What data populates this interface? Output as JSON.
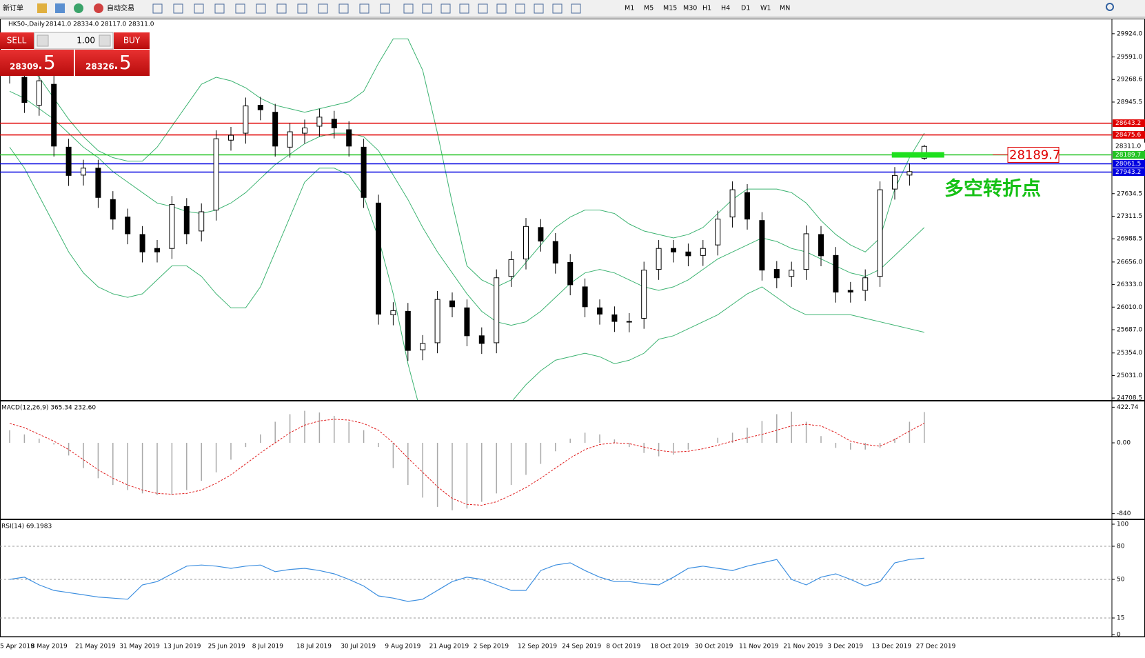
{
  "toolbar": {
    "new_order": "新订单",
    "auto_trading": "自动交易",
    "timeframes": [
      "M1",
      "M5",
      "M15",
      "M30",
      "H1",
      "H4",
      "D1",
      "W1",
      "MN"
    ]
  },
  "trade_panel": {
    "sell": "SELL",
    "buy": "BUY",
    "volume": "1.00",
    "bid_main": "28309",
    "bid_pip": ".5",
    "ask_main": "28326",
    "ask_pip": ".5"
  },
  "chart_data": [
    {
      "type": "candlestick",
      "title": "HK50-,Daily",
      "ohlc_text": "28141.0 28334.0 28117.0 28311.0",
      "categories": [
        "5 Apr 2019",
        null,
        "8 May 2019",
        null,
        null,
        "21 May 2019",
        null,
        null,
        "31 May 2019",
        null,
        null,
        "13 Jun 2019",
        null,
        null,
        "25 Jun 2019",
        null,
        null,
        "8 Jul 2019",
        null,
        null,
        "18 Jul 2019",
        null,
        null,
        "30 Jul 2019",
        null,
        null,
        "9 Aug 2019",
        null,
        null,
        "21 Aug 2019",
        null,
        null,
        "2 Sep 2019",
        null,
        null,
        "12 Sep 2019",
        null,
        null,
        "24 Sep 2019",
        null,
        null,
        "8 Oct 2019",
        null,
        null,
        "18 Oct 2019",
        null,
        null,
        "30 Oct 2019",
        null,
        null,
        "11 Nov 2019",
        null,
        null,
        "21 Nov 2019",
        null,
        null,
        "3 Dec 2019",
        null,
        null,
        "13 Dec 2019",
        null,
        null,
        "27 Dec 2019"
      ],
      "open": [
        29500,
        29300,
        28900,
        29200,
        28300,
        27900,
        28000,
        27550,
        27300,
        27050,
        26850,
        26850,
        27450,
        27100,
        27400,
        28400,
        28500,
        28900,
        28800,
        28300,
        28500,
        28600,
        28700,
        28550,
        28300,
        27500,
        25900,
        25950,
        25400,
        25500,
        26100,
        26000,
        25600,
        25500,
        26450,
        26700,
        27150,
        26950,
        26650,
        26300,
        26000,
        25900,
        25800,
        25850,
        26550,
        26850,
        26800,
        26750,
        26900,
        27300,
        27650,
        27250,
        26550,
        26450,
        26550,
        27050,
        26750,
        26250,
        26250,
        26450,
        27700,
        27900,
        28141
      ],
      "high": [
        29620,
        29420,
        29370,
        29320,
        28420,
        28120,
        28120,
        27670,
        27420,
        27170,
        26970,
        27600,
        27570,
        27495,
        28540,
        28590,
        29010,
        29020,
        28920,
        28640,
        28695,
        28850,
        28820,
        28670,
        28420,
        27620,
        26080,
        26070,
        25610,
        26240,
        26220,
        26120,
        25720,
        26550,
        26810,
        27285,
        27270,
        27070,
        26770,
        26420,
        26120,
        26020,
        25925,
        26660,
        26970,
        26970,
        26920,
        26970,
        27390,
        27810,
        27770,
        27370,
        26670,
        26660,
        27180,
        27170,
        26870,
        26370,
        26550,
        27810,
        28015,
        28070,
        28334
      ],
      "low": [
        29210,
        28790,
        28750,
        28165,
        27745,
        27750,
        27430,
        27120,
        26910,
        26650,
        26650,
        26700,
        26910,
        26950,
        27250,
        28250,
        28350,
        28685,
        28165,
        28150,
        28350,
        28450,
        28425,
        28165,
        27430,
        25760,
        25750,
        25240,
        25250,
        25350,
        25865,
        25450,
        25340,
        25350,
        26300,
        26550,
        26805,
        26490,
        26180,
        25865,
        25760,
        25655,
        25650,
        25700,
        26400,
        26650,
        26595,
        26600,
        26750,
        27150,
        27120,
        26390,
        26280,
        26300,
        26400,
        26595,
        26075,
        26075,
        26100,
        26300,
        27550,
        27750,
        28117
      ],
      "close": [
        29360,
        28940,
        29250,
        28315,
        27895,
        28000,
        27580,
        27270,
        27060,
        26800,
        26800,
        27480,
        27060,
        27375,
        28420,
        28470,
        28890,
        28835,
        28315,
        28520,
        28575,
        28730,
        28575,
        28315,
        27580,
        25910,
        25960,
        25390,
        25490,
        26120,
        26015,
        25600,
        25490,
        26430,
        26690,
        27165,
        26955,
        26640,
        26330,
        26015,
        25910,
        25805,
        25805,
        26540,
        26850,
        26800,
        26745,
        26850,
        27270,
        27690,
        27270,
        26540,
        26430,
        26540,
        27060,
        26745,
        26225,
        26225,
        26430,
        27690,
        27895,
        27950,
        28311
      ],
      "bands": {
        "color": "#3cb371",
        "upper": [
          29800,
          29500,
          29300,
          29000,
          28700,
          28450,
          28250,
          28150,
          28100,
          28100,
          28300,
          28600,
          28900,
          29200,
          29300,
          29250,
          29150,
          29000,
          28900,
          28850,
          28800,
          28850,
          28900,
          28950,
          29100,
          29500,
          29850,
          29850,
          29400,
          28500,
          27500,
          26600,
          26400,
          26300,
          26400,
          26650,
          26900,
          27150,
          27300,
          27400,
          27400,
          27350,
          27200,
          27100,
          27050,
          27000,
          27050,
          27150,
          27350,
          27550,
          27700,
          27700,
          27700,
          27650,
          27500,
          27250,
          27050,
          26900,
          26800,
          27000,
          27700,
          28150,
          28500
        ],
        "middle": [
          29100,
          29000,
          28850,
          28700,
          28500,
          28300,
          28150,
          27950,
          27800,
          27650,
          27500,
          27450,
          27380,
          27350,
          27400,
          27500,
          27650,
          27850,
          28050,
          28200,
          28350,
          28450,
          28500,
          28500,
          28450,
          28250,
          27900,
          27550,
          27150,
          26800,
          26500,
          26200,
          25950,
          25800,
          25750,
          25800,
          25950,
          26150,
          26350,
          26500,
          26550,
          26500,
          26400,
          26300,
          26250,
          26300,
          26400,
          26550,
          26700,
          26800,
          26900,
          27000,
          26950,
          26850,
          26800,
          26700,
          26600,
          26500,
          26450,
          26550,
          26750,
          26950,
          27150
        ],
        "lower": [
          28300,
          28000,
          27600,
          27200,
          26800,
          26500,
          26300,
          26200,
          26150,
          26200,
          26400,
          26600,
          26600,
          26450,
          26200,
          26000,
          26000,
          26300,
          26800,
          27300,
          27800,
          28000,
          28000,
          27900,
          27600,
          27000,
          26200,
          25200,
          24400,
          23800,
          23500,
          23600,
          23900,
          24300,
          24650,
          24900,
          25100,
          25250,
          25300,
          25350,
          25300,
          25200,
          25250,
          25350,
          25550,
          25600,
          25700,
          25800,
          25900,
          26050,
          26200,
          26300,
          26150,
          26000,
          25900,
          25900,
          25900,
          25900,
          25850,
          25800,
          25750,
          25700,
          25650
        ]
      },
      "ylim": [
        24680,
        30130
      ],
      "yticks": [
        {
          "value": 29924,
          "label": "29924.0"
        },
        {
          "value": 29591,
          "label": "29591.0"
        },
        29268.6,
        28945.5,
        27634.5,
        27311.5,
        26988.5,
        {
          "value": 26656,
          "label": "26656.0"
        },
        {
          "value": 26333,
          "label": "26333.0"
        },
        {
          "value": 26010,
          "label": "26010.0"
        },
        {
          "value": 25687,
          "label": "25687.0"
        },
        {
          "value": 25354,
          "label": "25354.0"
        },
        {
          "value": 25031,
          "label": "25031.0"
        },
        24708.5
      ],
      "levels": [
        {
          "value": 28643.2,
          "color": "#e00000"
        },
        {
          "value": 28475.6,
          "color": "#e00000"
        },
        {
          "value": 28189.7,
          "color": "#22c322"
        },
        {
          "value": 28061.5,
          "color": "#0000e0"
        },
        {
          "value": 27943.2,
          "color": "#0000e0"
        }
      ],
      "last_price": {
        "value": 28311,
        "label": "28311.0"
      },
      "annotation": {
        "value": 28189.7,
        "label": "28189.7",
        "text": "多空转折点"
      }
    },
    {
      "type": "macd",
      "title": "MACD(12,26,9) 365.34 232.60",
      "histogram": [
        150,
        100,
        50,
        -20,
        -150,
        -300,
        -420,
        -500,
        -560,
        -600,
        -620,
        -620,
        -560,
        -450,
        -350,
        -200,
        -50,
        100,
        250,
        340,
        380,
        360,
        320,
        250,
        150,
        -50,
        -300,
        -500,
        -650,
        -760,
        -800,
        -780,
        -700,
        -600,
        -500,
        -380,
        -250,
        -100,
        50,
        120,
        100,
        40,
        -50,
        -120,
        -160,
        -140,
        -80,
        0,
        60,
        120,
        180,
        260,
        340,
        370,
        250,
        80,
        -60,
        -80,
        -80,
        -60,
        50,
        250,
        365.34
      ],
      "signal": [
        230,
        180,
        100,
        20,
        -80,
        -200,
        -320,
        -420,
        -500,
        -560,
        -600,
        -610,
        -600,
        -560,
        -480,
        -380,
        -250,
        -120,
        0,
        120,
        210,
        260,
        280,
        270,
        230,
        150,
        0,
        -180,
        -350,
        -520,
        -660,
        -730,
        -740,
        -700,
        -620,
        -530,
        -420,
        -300,
        -180,
        -80,
        -20,
        0,
        -10,
        -50,
        -90,
        -110,
        -100,
        -70,
        -30,
        20,
        60,
        100,
        150,
        200,
        220,
        200,
        120,
        20,
        -20,
        -40,
        40,
        140,
        232.6
      ],
      "hist_color": "#a8a8a8",
      "signal_color": "#e02020",
      "ylim": [
        -900,
        475
      ],
      "yticks": [
        422.74,
        {
          "value": 0,
          "label": "0.00"
        },
        -840
      ]
    },
    {
      "type": "rsi",
      "title": "RSI(14) 69.1983",
      "values": [
        50,
        52,
        45,
        40,
        38,
        36,
        34,
        33,
        32,
        45,
        48,
        55,
        62,
        63,
        62,
        60,
        62,
        63,
        57,
        59,
        60,
        58,
        55,
        50,
        44,
        35,
        33,
        30,
        32,
        40,
        48,
        52,
        50,
        45,
        40,
        40,
        58,
        63,
        65,
        58,
        52,
        48,
        48,
        46,
        45,
        52,
        60,
        62,
        60,
        58,
        62,
        65,
        68,
        50,
        45,
        52,
        55,
        50,
        44,
        48,
        65,
        68,
        69.1983
      ],
      "color": "#3d8fe0",
      "ylim": [
        0,
        100
      ],
      "yticks": [
        100,
        80,
        50,
        15,
        0
      ]
    }
  ]
}
